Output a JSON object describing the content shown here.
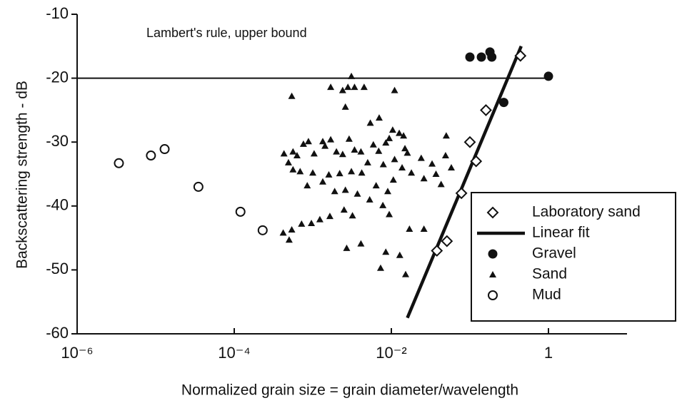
{
  "chart_data": {
    "type": "scatter",
    "x_label": "Normalized grain size = grain diameter/wavelength",
    "y_label": "Backscattering strength - dB",
    "x_scale": "log",
    "xlim": [
      1e-06,
      10
    ],
    "ylim": [
      -60,
      -10
    ],
    "xticks": [
      {
        "value": 1e-06,
        "label": "10⁻⁶"
      },
      {
        "value": 0.0001,
        "label": "10⁻⁴"
      },
      {
        "value": 0.01,
        "label": "10⁻²"
      },
      1
    ],
    "yticks": [
      -60,
      -50,
      -40,
      -30,
      -20,
      -10
    ],
    "grid": false,
    "legend": "lower right",
    "reference_line": {
      "label": "Lambert's rule, upper bound",
      "x": [
        1e-06,
        1
      ],
      "y": [
        -20,
        -20
      ]
    },
    "series": [
      {
        "name": "Laboratory sand",
        "marker": "diamond",
        "color": "#111111",
        "x": [
          0.038,
          0.051,
          0.078,
          0.12,
          0.1,
          0.16,
          0.44
        ],
        "values": [
          -47,
          -45.5,
          -38,
          -33,
          -30,
          -25,
          -16.5
        ]
      },
      {
        "name": "Linear fit",
        "marker": "line",
        "color": "#111111",
        "x": [
          0.016,
          0.45
        ],
        "values": [
          -57.5,
          -15
        ]
      },
      {
        "name": "Gravel",
        "marker": "circle-filled",
        "color": "#111111",
        "x": [
          0.1,
          0.14,
          0.18,
          0.19,
          0.27,
          1.0
        ],
        "values": [
          -16.7,
          -16.7,
          -15.9,
          -16.7,
          -23.8,
          -19.7
        ]
      },
      {
        "name": "Sand",
        "marker": "triangle",
        "color": "#111111",
        "x": [
          0.00054,
          0.00169,
          0.0024,
          0.0028,
          0.0031,
          0.0034,
          0.0045,
          0.011,
          0.0026,
          0.0054,
          0.007,
          0.0104,
          0.0094,
          0.0126,
          0.0143,
          0.0149,
          0.0085,
          0.0059,
          0.0041,
          0.0029,
          0.00169,
          0.00134,
          0.00088,
          0.00076,
          0.00056,
          0.00043,
          0.00049,
          0.00063,
          0.00104,
          0.00143,
          0.002,
          0.0024,
          0.0034,
          0.005,
          0.0069,
          0.0079,
          0.011,
          0.016,
          0.024,
          0.033,
          0.049,
          0.058,
          0.037,
          0.026,
          0.018,
          0.0137,
          0.0106,
          0.009,
          0.0064,
          0.0042,
          0.0031,
          0.0022,
          0.0016,
          0.001,
          0.00069,
          0.00056,
          0.00085,
          0.00134,
          0.0019,
          0.0026,
          0.0037,
          0.0053,
          0.0078,
          0.0094,
          0.0032,
          0.0025,
          0.00165,
          0.00123,
          0.00096,
          0.00072,
          0.00054,
          0.00042,
          0.0005,
          0.0027,
          0.0041,
          0.0085,
          0.0073,
          0.0128,
          0.0152,
          0.017,
          0.026,
          0.043,
          0.05
        ],
        "values": [
          -22.8,
          -21.4,
          -21.9,
          -21.4,
          -19.7,
          -21.4,
          -21.4,
          -21.9,
          -24.5,
          -27,
          -26.2,
          -28.1,
          -29.4,
          -28.6,
          -29,
          -31,
          -30.1,
          -30.4,
          -31.5,
          -29.5,
          -29.6,
          -29.9,
          -29.9,
          -30.3,
          -31.5,
          -31.8,
          -33.2,
          -32.1,
          -31.8,
          -30.6,
          -31.5,
          -31.9,
          -31.2,
          -33.2,
          -31.4,
          -33.5,
          -32.7,
          -31.7,
          -32.5,
          -33.4,
          -32.1,
          -34,
          -35,
          -35.7,
          -34.8,
          -34,
          -35.9,
          -37.7,
          -36.8,
          -34.8,
          -34.6,
          -34.9,
          -35.1,
          -34.8,
          -34.6,
          -34.3,
          -36.8,
          -36.2,
          -37.7,
          -37.5,
          -38.1,
          -39,
          -39.9,
          -41.3,
          -41.5,
          -40.6,
          -41.6,
          -42.1,
          -42.7,
          -42.8,
          -43.7,
          -44.2,
          -45.3,
          -46.6,
          -45.9,
          -47.2,
          -49.7,
          -47.7,
          -50.7,
          -43.6,
          -43.6,
          -36.6,
          -29
        ]
      },
      {
        "name": "Mud",
        "marker": "circle-open",
        "color": "#111111",
        "x": [
          3.4e-06,
          8.7e-06,
          1.3e-05,
          3.5e-05,
          0.00012,
          0.00023
        ],
        "values": [
          -33.3,
          -32.1,
          -31.1,
          -37,
          -40.9,
          -43.8
        ]
      }
    ]
  }
}
